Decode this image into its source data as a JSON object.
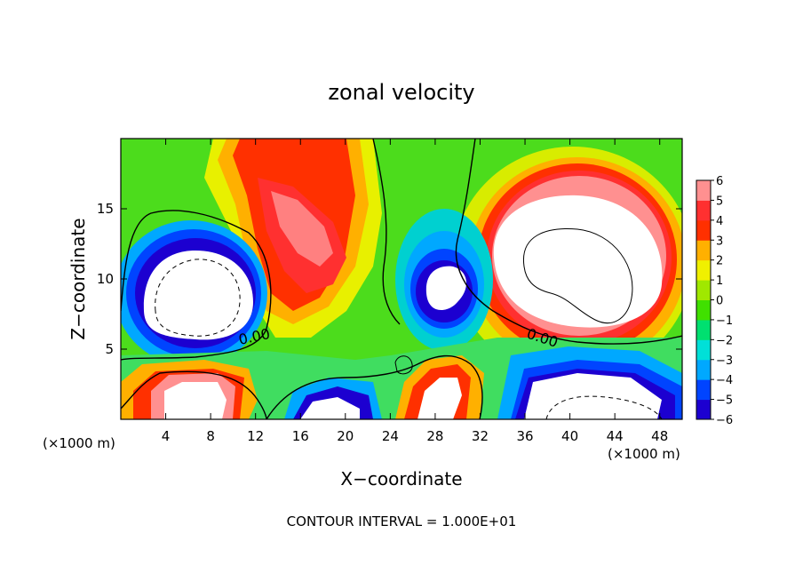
{
  "chart_data": {
    "type": "heatmap",
    "title": "zonal velocity",
    "xlabel": "X−coordinate",
    "ylabel": "Z−coordinate",
    "x_unit_label_left": "(×1000 m)",
    "x_unit_label_right": "(×1000 m)",
    "footer": "CONTOUR INTERVAL = 1.000E+01",
    "xlim": [
      0,
      50
    ],
    "ylim": [
      0,
      20
    ],
    "xticks": [
      4,
      8,
      12,
      16,
      20,
      24,
      28,
      32,
      36,
      40,
      44,
      48
    ],
    "yticks": [
      5,
      10,
      15
    ],
    "colorbar": {
      "ticks": [
        6,
        5,
        4,
        3,
        2,
        1,
        0,
        -1,
        -2,
        -3,
        -4,
        -5,
        -6
      ],
      "range": [
        -6,
        6
      ],
      "colors": [
        "#7b00a0",
        "#1c00d0",
        "#0044ff",
        "#00a8ff",
        "#00e0d8",
        "#00e070",
        "#40e000",
        "#a0e800",
        "#f0f000",
        "#ffb000",
        "#ff3000",
        "#ff3030",
        "#ff9090"
      ]
    },
    "contour_labels": [
      "0.00",
      "0.00"
    ],
    "features": [
      {
        "name": "negative core west",
        "x": 6.5,
        "z": 8.5,
        "sign": "negative",
        "value_min": -6
      },
      {
        "name": "positive core east",
        "x": 40,
        "z": 11,
        "sign": "positive",
        "value_max": 6
      },
      {
        "name": "positive jet upper",
        "x": 15,
        "z": 14,
        "sign": "positive",
        "value_max": 5
      },
      {
        "name": "negative core center",
        "x": 29,
        "z": 9.5,
        "sign": "negative",
        "value_min": -6
      },
      {
        "name": "positive near surface west",
        "x": 7,
        "z": 2,
        "sign": "positive",
        "value_max": 6
      },
      {
        "name": "negative near surface east",
        "x": 40,
        "z": 1.5,
        "sign": "negative",
        "value_min": -6
      },
      {
        "name": "positive near surface center",
        "x": 28,
        "z": 2.5,
        "sign": "positive",
        "value_max": 6
      }
    ]
  }
}
